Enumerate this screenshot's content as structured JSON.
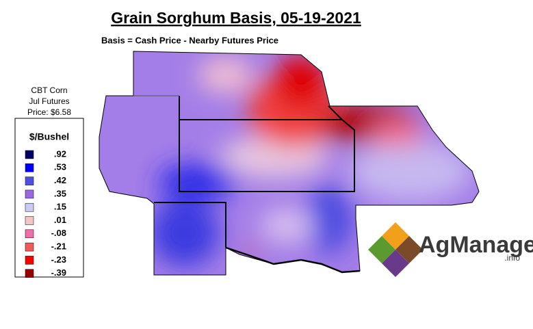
{
  "header": {
    "title": "Grain Sorghum Basis, 05-19-2021",
    "subtitle": "Basis = Cash Price - Nearby Futures Price"
  },
  "futures": {
    "lines": [
      "CBT Corn",
      "Jul Futures",
      "Price: $6.58"
    ]
  },
  "legend": {
    "title": "$/Bushel",
    "items": [
      {
        "label": ".92",
        "color": "#000066"
      },
      {
        "label": ".53",
        "color": "#0000ff"
      },
      {
        "label": ".42",
        "color": "#4f4fe6"
      },
      {
        "label": ".35",
        "color": "#9a68e2"
      },
      {
        "label": ".15",
        "color": "#cacaf5"
      },
      {
        "label": ".01",
        "color": "#f3c6c6"
      },
      {
        "label": "-.08",
        "color": "#ef6fa8"
      },
      {
        "label": "-.21",
        "color": "#f05a5a"
      },
      {
        "label": "-.23",
        "color": "#ff0000"
      },
      {
        "label": "-.39",
        "color": "#990000"
      }
    ]
  },
  "logo": {
    "name": "AgManager",
    "suffix": ".info"
  }
}
